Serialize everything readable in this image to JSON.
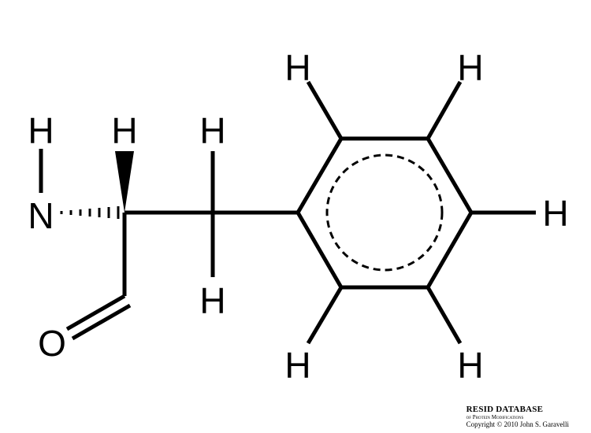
{
  "atoms": {
    "h_amine": "H",
    "n": "N",
    "h_alpha": "H",
    "h_beta_top": "H",
    "h_beta_bottom": "H",
    "o": "O",
    "h_ring_top_left": "H",
    "h_ring_top_right": "H",
    "h_ring_right": "H",
    "h_ring_bottom_left": "H",
    "h_ring_bottom_right": "H"
  },
  "credit": {
    "database": "RESID DATABASE",
    "subtitle": "of Protein Modifications",
    "copyright": "Copyright © 2010 John S. Garavelli"
  }
}
